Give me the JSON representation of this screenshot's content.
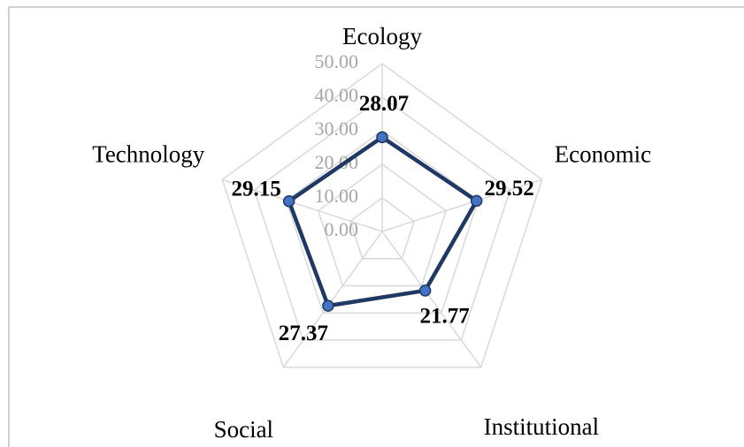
{
  "chart_data": {
    "type": "radar",
    "categories": [
      "Ecology",
      "Economic",
      "Institutional",
      "Social",
      "Technology"
    ],
    "series": [
      {
        "color": "#203864",
        "values": [
          28.07,
          29.52,
          21.77,
          27.37,
          29.15
        ]
      }
    ],
    "rlim": [
      0,
      50
    ],
    "rticks": [
      {
        "value": 0,
        "label": "0.00"
      },
      {
        "value": 10,
        "label": "10.00"
      },
      {
        "value": 20,
        "label": "20.00"
      },
      {
        "value": 30,
        "label": "30.00"
      },
      {
        "value": 40,
        "label": "40.00"
      },
      {
        "value": 50,
        "label": "50.00"
      }
    ],
    "grid": true
  }
}
